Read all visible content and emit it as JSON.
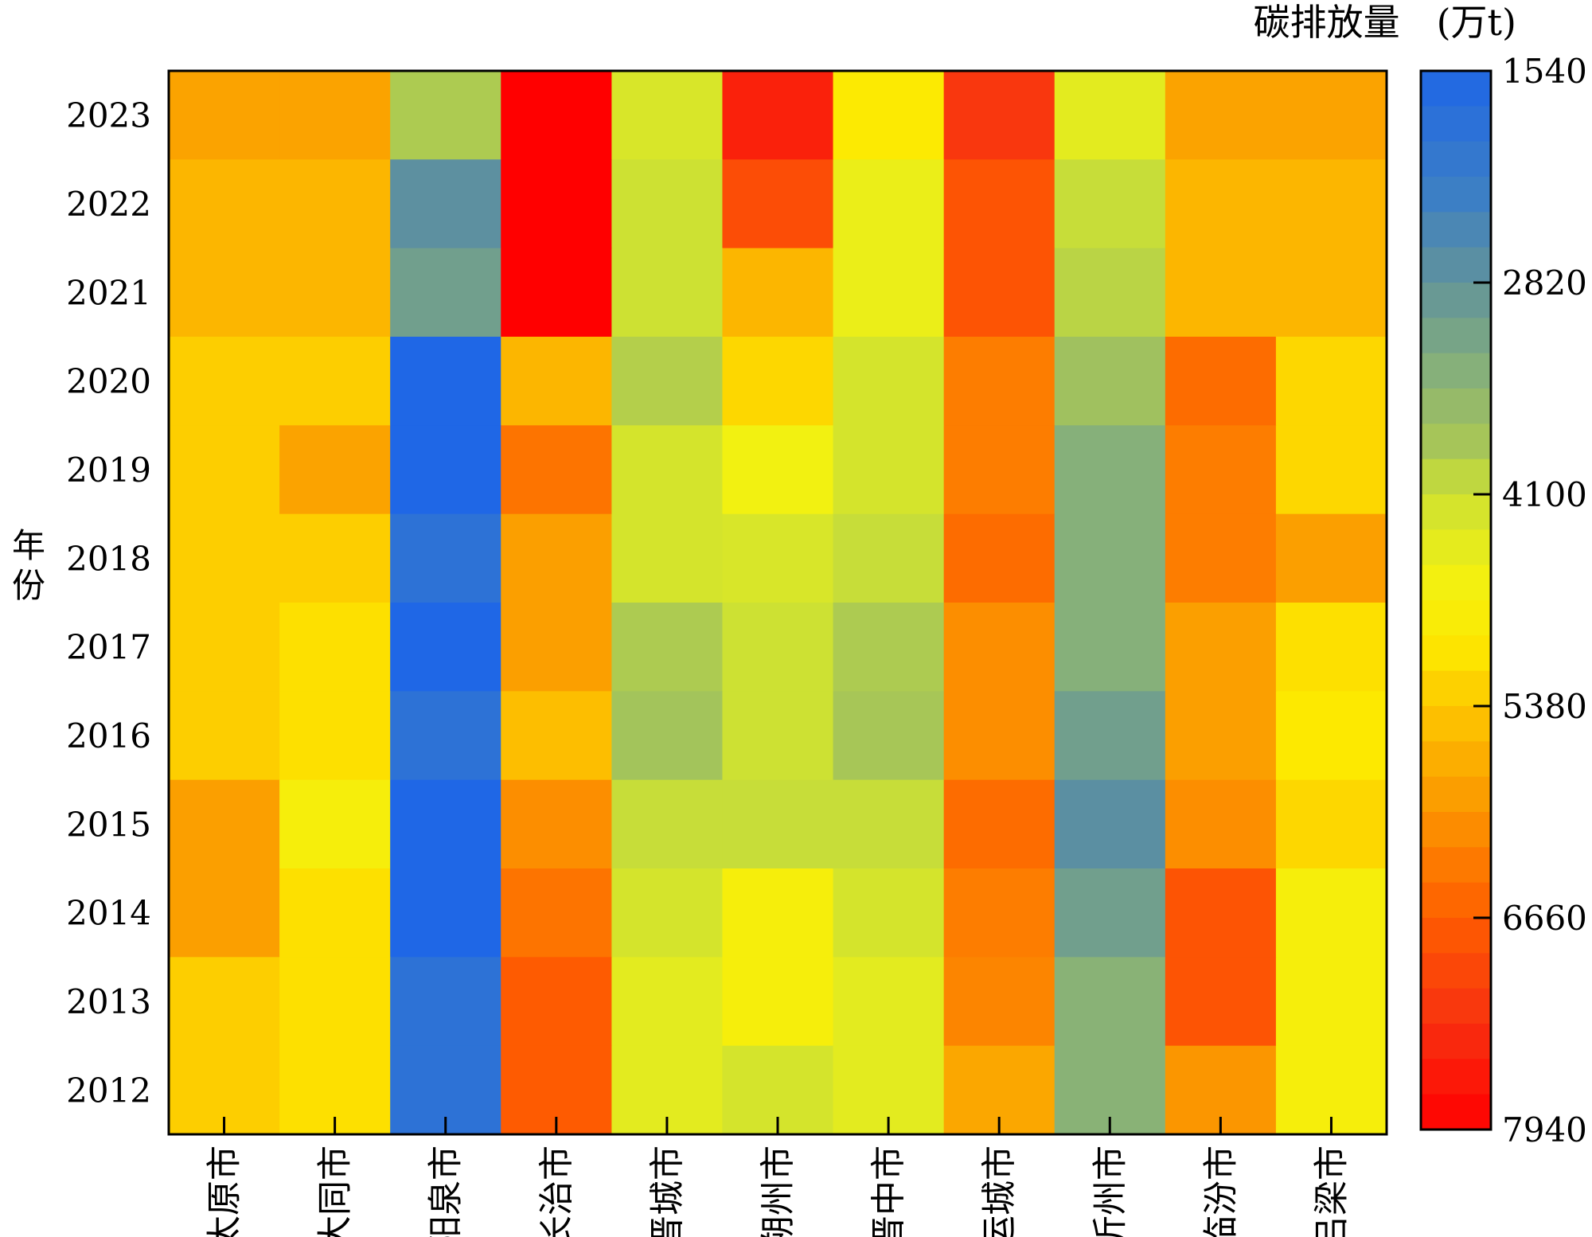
{
  "chart_data": {
    "type": "heatmap",
    "ylabel": "年份",
    "colorbar_label": "碳排放量　(万t)",
    "colorbar_ticks": [
      1540,
      2820,
      4100,
      5380,
      6660,
      7940
    ],
    "zlim": [
      1540,
      7940
    ],
    "colorbar_orientation": "reversed",
    "color_stops": [
      {
        "v": 1540,
        "c": "#1f67e6"
      },
      {
        "v": 2300,
        "c": "#3d7fc4"
      },
      {
        "v": 2820,
        "c": "#62939a"
      },
      {
        "v": 3300,
        "c": "#82ad7e"
      },
      {
        "v": 3800,
        "c": "#a7c657"
      },
      {
        "v": 4100,
        "c": "#cde133"
      },
      {
        "v": 4600,
        "c": "#f2f111"
      },
      {
        "v": 5000,
        "c": "#fde900"
      },
      {
        "v": 5380,
        "c": "#fdc700"
      },
      {
        "v": 5900,
        "c": "#fb9f00"
      },
      {
        "v": 6660,
        "c": "#fe5e00"
      },
      {
        "v": 7300,
        "c": "#f83010"
      },
      {
        "v": 7940,
        "c": "#ff0000"
      }
    ],
    "x_categories": [
      "太原市",
      "大同市",
      "阳泉市",
      "长治市",
      "晋城市",
      "朔州市",
      "晋中市",
      "运城市",
      "忻州市",
      "临汾市",
      "吕梁市"
    ],
    "y_categories": [
      "2023",
      "2022",
      "2021",
      "2020",
      "2019",
      "2018",
      "2017",
      "2016",
      "2015",
      "2014",
      "2013",
      "2012"
    ],
    "values": [
      [
        5850,
        5850,
        3850,
        7940,
        4250,
        7500,
        4950,
        7200,
        4400,
        5850,
        5850
      ],
      [
        5600,
        5600,
        2750,
        7940,
        4100,
        6900,
        4500,
        6800,
        4050,
        5600,
        5600
      ],
      [
        5600,
        5600,
        3050,
        7940,
        4100,
        5600,
        4500,
        6800,
        3950,
        5600,
        5600
      ],
      [
        5300,
        5300,
        1540,
        5600,
        3900,
        5200,
        4200,
        6300,
        3700,
        6500,
        5200
      ],
      [
        5300,
        5850,
        1540,
        6400,
        4200,
        4600,
        4200,
        6300,
        3350,
        6300,
        5200
      ],
      [
        5300,
        5300,
        1900,
        5900,
        4200,
        4250,
        4050,
        6500,
        3350,
        6300,
        5900
      ],
      [
        5300,
        5100,
        1540,
        5900,
        3850,
        4100,
        3850,
        6100,
        3350,
        5900,
        5100
      ],
      [
        5300,
        5100,
        1900,
        5500,
        3750,
        4100,
        3800,
        6100,
        3050,
        5900,
        5000
      ],
      [
        5900,
        4750,
        1540,
        6100,
        4050,
        4050,
        4050,
        6500,
        2720,
        6100,
        5200
      ],
      [
        5900,
        5100,
        1540,
        6400,
        4200,
        4750,
        4200,
        6300,
        3050,
        6800,
        4750
      ],
      [
        5300,
        5100,
        1900,
        6700,
        4400,
        4750,
        4400,
        6200,
        3400,
        6800,
        4750
      ],
      [
        5300,
        5100,
        1900,
        6700,
        4400,
        4200,
        4400,
        5800,
        3400,
        6000,
        4750
      ]
    ]
  }
}
